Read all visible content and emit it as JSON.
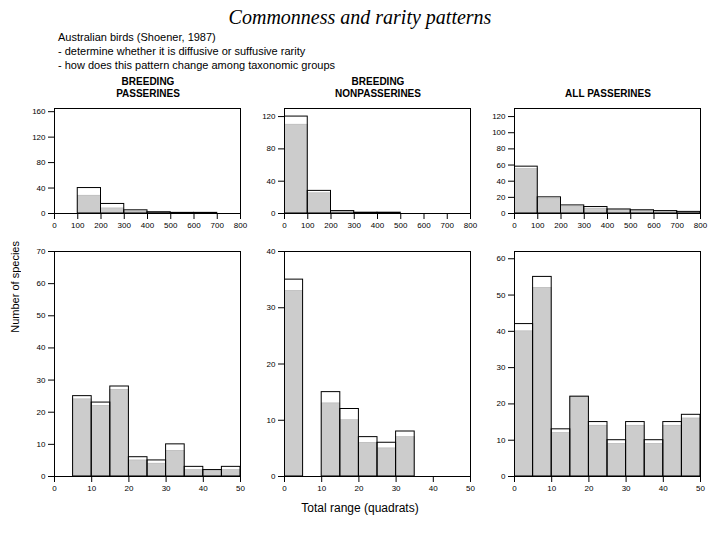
{
  "title": "Commonness and rarity patterns",
  "subtitle": [
    "Australian birds (Shoener, 1987)",
    "- determine whether it is diffusive or suffusive rarity",
    "- how does this pattern change among taxonomic groups"
  ],
  "xlabel": "Total range (quadrats)",
  "ylabel": "Number of species",
  "chart_data": [
    {
      "type": "histogram",
      "title": "BREEDING\nPASSERINES",
      "bins": [
        0,
        100,
        200,
        300,
        400,
        500,
        600,
        700,
        800
      ],
      "series": [
        {
          "color": "#cccccc",
          "values": [
            0,
            28,
            8,
            3,
            1,
            1,
            0,
            0
          ]
        },
        {
          "color": "#000000",
          "values": [
            0,
            40,
            15,
            5,
            2,
            1,
            1,
            0
          ]
        }
      ],
      "xlim": [
        0,
        800
      ],
      "xticks": [
        0,
        100,
        200,
        300,
        400,
        500,
        600,
        700,
        800
      ],
      "ylim": [
        0,
        165
      ],
      "yticks": [
        0,
        40,
        80,
        120,
        160
      ]
    },
    {
      "type": "histogram",
      "title": "BREEDING\nNONPASSERINES",
      "bins": [
        0,
        100,
        200,
        300,
        400,
        500,
        600,
        700,
        800
      ],
      "series": [
        {
          "color": "#cccccc",
          "values": [
            110,
            25,
            2,
            0,
            0,
            0,
            0,
            0
          ]
        },
        {
          "color": "#000000",
          "values": [
            120,
            28,
            3,
            1,
            1,
            0,
            0,
            0
          ]
        }
      ],
      "xlim": [
        0,
        800
      ],
      "xticks": [
        0,
        100,
        200,
        300,
        400,
        500,
        600,
        700,
        800
      ],
      "ylim": [
        0,
        130
      ],
      "yticks": [
        0,
        40,
        80,
        120
      ]
    },
    {
      "type": "histogram",
      "title": "ALL PASSERINES",
      "bins": [
        0,
        100,
        200,
        300,
        400,
        500,
        600,
        700,
        800
      ],
      "series": [
        {
          "color": "#cccccc",
          "values": [
            55,
            18,
            8,
            6,
            4,
            3,
            2,
            1
          ]
        },
        {
          "color": "#000000",
          "values": [
            58,
            20,
            10,
            8,
            5,
            4,
            3,
            2
          ]
        }
      ],
      "xlim": [
        0,
        800
      ],
      "xticks": [
        0,
        100,
        200,
        300,
        400,
        500,
        600,
        700,
        800
      ],
      "ylim": [
        0,
        130
      ],
      "yticks": [
        0,
        20,
        40,
        60,
        80,
        100,
        120
      ]
    },
    {
      "type": "histogram",
      "bins": [
        0,
        5,
        10,
        15,
        20,
        25,
        30,
        35,
        40,
        45,
        50
      ],
      "series": [
        {
          "color": "#cccccc",
          "values": [
            0,
            24,
            22,
            27,
            5,
            4,
            8,
            2,
            2,
            2
          ]
        },
        {
          "color": "#000000",
          "values": [
            0,
            25,
            23,
            28,
            6,
            5,
            10,
            3,
            2,
            3
          ]
        }
      ],
      "xlim": [
        0,
        50
      ],
      "xticks": [
        0,
        10,
        20,
        30,
        40,
        50
      ],
      "ylim": [
        0,
        70
      ],
      "yticks": [
        0,
        10,
        20,
        30,
        40,
        50,
        60,
        70
      ]
    },
    {
      "type": "histogram",
      "bins": [
        0,
        5,
        10,
        15,
        20,
        25,
        30,
        35,
        40,
        45,
        50
      ],
      "series": [
        {
          "color": "#cccccc",
          "values": [
            33,
            0,
            13,
            10,
            6,
            5,
            7,
            0,
            0,
            0
          ]
        },
        {
          "color": "#000000",
          "values": [
            35,
            0,
            15,
            12,
            7,
            6,
            8,
            0,
            0,
            0
          ]
        }
      ],
      "xlim": [
        0,
        50
      ],
      "xticks": [
        0,
        10,
        20,
        30,
        40,
        50
      ],
      "ylim": [
        0,
        40
      ],
      "yticks": [
        0,
        10,
        20,
        30,
        40
      ]
    },
    {
      "type": "histogram",
      "bins": [
        0,
        5,
        10,
        15,
        20,
        25,
        30,
        35,
        40,
        45,
        50
      ],
      "series": [
        {
          "color": "#cccccc",
          "values": [
            40,
            52,
            12,
            22,
            14,
            9,
            14,
            9,
            14,
            16
          ]
        },
        {
          "color": "#000000",
          "values": [
            42,
            55,
            13,
            22,
            15,
            10,
            15,
            10,
            15,
            17
          ]
        }
      ],
      "xlim": [
        0,
        50
      ],
      "xticks": [
        0,
        10,
        20,
        30,
        40,
        50
      ],
      "ylim": [
        0,
        62
      ],
      "yticks": [
        0,
        10,
        20,
        30,
        40,
        50,
        60
      ]
    }
  ]
}
